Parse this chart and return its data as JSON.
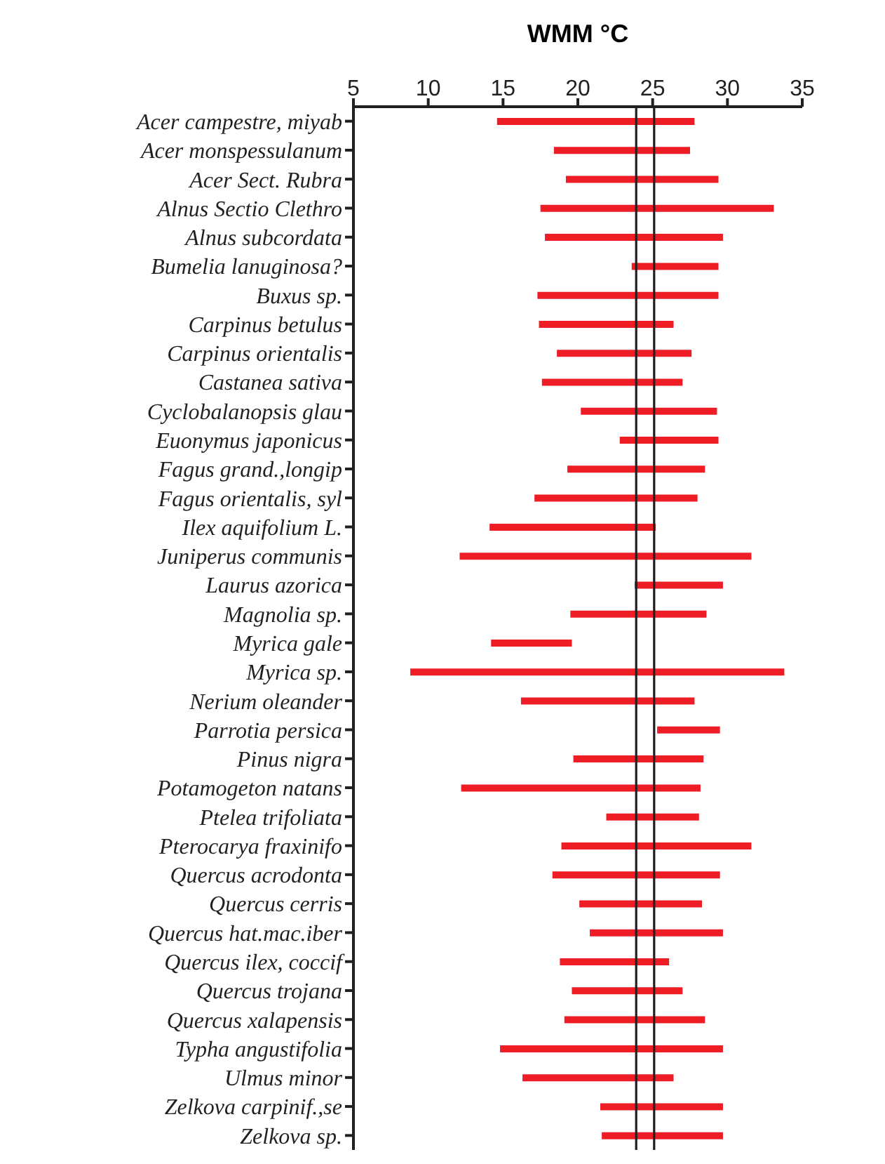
{
  "chart_data": {
    "type": "bar",
    "orientation": "horizontal",
    "title": "WMM °C",
    "categories": [
      "Acer campestre, miyab",
      "Acer monspessulanum",
      "Acer Sect. Rubra",
      "Alnus Sectio Clethro",
      "Alnus subcordata",
      "Bumelia lanuginosa?",
      "Buxus sp.",
      "Carpinus betulus",
      "Carpinus orientalis",
      "Castanea sativa",
      "Cyclobalanopsis glau",
      "Euonymus japonicus",
      "Fagus grand.,longip",
      "Fagus orientalis, syl",
      "Ilex aquifolium L.",
      "Juniperus communis",
      "Laurus azorica",
      "Magnolia sp.",
      "Myrica gale",
      "Myrica sp.",
      "Nerium oleander",
      "Parrotia persica",
      "Pinus nigra",
      "Potamogeton natans",
      "Ptelea trifoliata",
      "Pterocarya fraxinifo",
      "Quercus acrodonta",
      "Quercus cerris",
      "Quercus hat.mac.iber",
      "Quercus ilex, coccif",
      "Quercus trojana",
      "Quercus xalapensis",
      "Typha angustifolia",
      "Ulmus minor",
      "Zelkova carpinif.,se",
      "Zelkova sp."
    ],
    "base": [
      14.6,
      18.4,
      19.2,
      17.5,
      17.8,
      23.6,
      17.3,
      17.4,
      18.6,
      17.6,
      20.2,
      22.8,
      19.3,
      17.1,
      14.1,
      12.1,
      23.8,
      19.5,
      14.2,
      8.8,
      16.2,
      25.3,
      19.7,
      12.2,
      21.9,
      18.9,
      18.3,
      20.1,
      20.8,
      18.8,
      19.6,
      19.1,
      14.8,
      16.3,
      21.5,
      21.6
    ],
    "values": [
      13.2,
      9.1,
      10.2,
      15.6,
      11.9,
      5.8,
      12.1,
      9.0,
      9.0,
      9.4,
      9.1,
      6.6,
      9.2,
      10.9,
      11.1,
      19.5,
      5.9,
      9.1,
      5.4,
      25.0,
      11.6,
      4.2,
      8.7,
      16.0,
      6.2,
      12.7,
      11.2,
      8.2,
      8.9,
      7.3,
      7.4,
      9.4,
      14.9,
      10.1,
      8.2,
      8.1
    ],
    "color": "#ee1c25",
    "xlim": [
      5,
      35
    ],
    "xticks": [
      5,
      10,
      15,
      20,
      25,
      30,
      35
    ],
    "ref_lines": [
      {
        "axis": "x",
        "value": 23.9,
        "color": "#231f20"
      },
      {
        "axis": "x",
        "value": 25.1,
        "color": "#231f20"
      }
    ],
    "grid": false,
    "legend": false
  }
}
